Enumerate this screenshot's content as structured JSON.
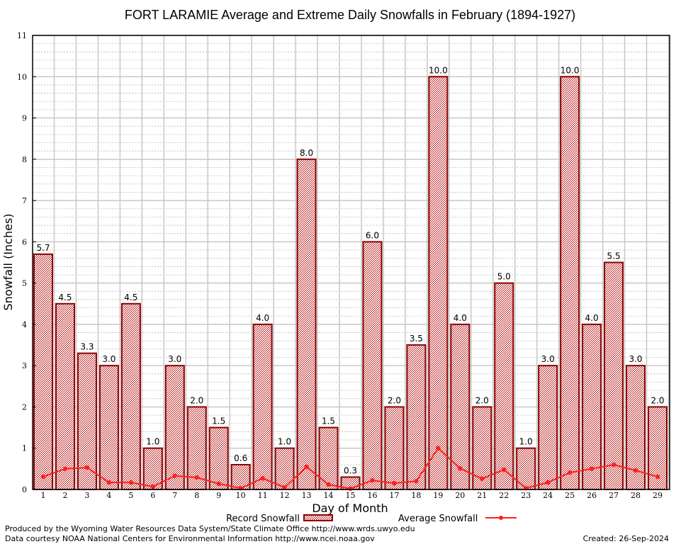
{
  "chart_data": {
    "type": "bar",
    "title": "FORT LARAMIE Average and Extreme Daily Snowfalls in February (1894-1927)",
    "xlabel": "Day of Month",
    "ylabel": "Snowfall (Inches)",
    "ylim": [
      0,
      11
    ],
    "yticks": [
      0,
      1,
      2,
      3,
      4,
      5,
      6,
      7,
      8,
      9,
      10,
      11
    ],
    "grid": true,
    "legend_position": "bottom-center",
    "categories": [
      "1",
      "2",
      "3",
      "4",
      "5",
      "6",
      "7",
      "8",
      "9",
      "10",
      "11",
      "12",
      "13",
      "14",
      "15",
      "16",
      "17",
      "18",
      "19",
      "20",
      "21",
      "22",
      "23",
      "24",
      "25",
      "26",
      "27",
      "28",
      "29"
    ],
    "series": [
      {
        "name": "Record Snowfall",
        "kind": "bar",
        "color": "#8b0000",
        "values": [
          5.7,
          4.5,
          3.3,
          3.0,
          4.5,
          1.0,
          3.0,
          2.0,
          1.5,
          0.6,
          4.0,
          1.0,
          8.0,
          1.5,
          0.3,
          6.0,
          2.0,
          3.5,
          10.0,
          4.0,
          2.0,
          5.0,
          1.0,
          3.0,
          10.0,
          4.0,
          5.5,
          3.0,
          2.0
        ],
        "labels": [
          "5.7",
          "4.5",
          "3.3",
          "3.0",
          "4.5",
          "1.0",
          "3.0",
          "2.0",
          "1.5",
          "0.6",
          "4.0",
          "1.0",
          "8.0",
          "1.5",
          "0.3",
          "6.0",
          "2.0",
          "3.5",
          "10.0",
          "4.0",
          "2.0",
          "5.0",
          "1.0",
          "3.0",
          "10.0",
          "4.0",
          "5.5",
          "3.0",
          "2.0"
        ]
      },
      {
        "name": "Average Snowfall",
        "kind": "line",
        "color": "#ff2020",
        "values": [
          0.31,
          0.5,
          0.53,
          0.17,
          0.17,
          0.07,
          0.33,
          0.29,
          0.14,
          0.03,
          0.27,
          0.05,
          0.55,
          0.12,
          0.02,
          0.22,
          0.15,
          0.2,
          1.0,
          0.51,
          0.26,
          0.48,
          0.03,
          0.17,
          0.41,
          0.5,
          0.6,
          0.46,
          0.31
        ]
      }
    ]
  },
  "footer": {
    "produced_by": "Produced by the Wyoming Water Resources Data System/State Climate Office http://www.wrds.uwyo.edu",
    "courtesy": "Data courtesy NOAA National Centers for Environmental Information http://www.ncei.noaa.gov",
    "created": "Created: 26-Sep-2024"
  }
}
